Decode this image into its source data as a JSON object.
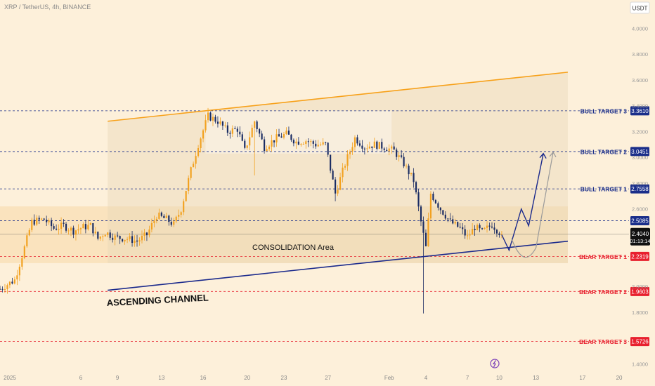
{
  "header": {
    "symbol_line": "XRP / TetherUS, 4h, BINANCE",
    "currency": "USDT"
  },
  "y_axis": {
    "ticks": [
      {
        "v": 4.0,
        "label": "4.0000"
      },
      {
        "v": 3.8,
        "label": "3.8000"
      },
      {
        "v": 3.6,
        "label": "3.6000"
      },
      {
        "v": 3.4,
        "label": "3.4000"
      },
      {
        "v": 3.2,
        "label": "3.2000"
      },
      {
        "v": 3.0,
        "label": "3.0000"
      },
      {
        "v": 2.8,
        "label": "2.8000"
      },
      {
        "v": 2.6,
        "label": "2.6000"
      },
      {
        "v": 2.0,
        "label": "2.0000"
      },
      {
        "v": 1.8,
        "label": "1.8000"
      },
      {
        "v": 1.4,
        "label": "1.4000"
      }
    ]
  },
  "x_axis": {
    "ticks": [
      {
        "i": 0,
        "label": "2025"
      },
      {
        "i": 33,
        "label": "6"
      },
      {
        "i": 48,
        "label": "9"
      },
      {
        "i": 66,
        "label": "13"
      },
      {
        "i": 83,
        "label": "16"
      },
      {
        "i": 101,
        "label": "20"
      },
      {
        "i": 116,
        "label": "23"
      },
      {
        "i": 134,
        "label": "27"
      },
      {
        "i": 159,
        "label": "Feb"
      },
      {
        "i": 174,
        "label": "4"
      },
      {
        "i": 191,
        "label": "7"
      },
      {
        "i": 204,
        "label": "10"
      },
      {
        "i": 219,
        "label": "13"
      },
      {
        "i": 238,
        "label": "17"
      },
      {
        "i": 253,
        "label": "20"
      }
    ]
  },
  "levels": [
    {
      "name": "BULL TARGET 3",
      "value": 3.361,
      "label": "3.3610",
      "kind": "bull"
    },
    {
      "name": "BULL TARGET 2",
      "value": 3.0451,
      "label": "3.0451",
      "kind": "bull"
    },
    {
      "name": "BULL TARGET 1",
      "value": 2.7558,
      "label": "2.7558",
      "kind": "bull"
    },
    {
      "name": "",
      "value": 2.5085,
      "label": "2.5085",
      "kind": "bull"
    },
    {
      "name": "BEAR TARGET 1",
      "value": 2.2319,
      "label": "2.2319",
      "kind": "bear"
    },
    {
      "name": "BEAR TARGET 2",
      "value": 1.9603,
      "label": "1.9603",
      "kind": "bear"
    },
    {
      "name": "BEAR TARGET 3",
      "value": 1.5726,
      "label": "1.5726",
      "kind": "bear"
    }
  ],
  "current_price": {
    "value": 2.404,
    "label": "2.4040",
    "countdown": "01:13:14"
  },
  "annotations": {
    "consolidation": "CONSOLIDATION Area",
    "channel": "ASCENDING CHANNEL"
  },
  "colors": {
    "bull": "#1a2e8a",
    "bear": "#e8202e",
    "up": "#f2a11f",
    "down": "#1a2c63",
    "channel_top": "#f7a11a",
    "channel_bottom": "#1b2a8c",
    "bg": "#fdf0da"
  },
  "chart_data": {
    "type": "candlestick",
    "symbol": "XRP / TetherUS, 4h, BINANCE",
    "ylim": [
      1.38,
      4.1
    ],
    "x_range": [
      0,
      257
    ],
    "channel": {
      "upper": {
        "from": [
          44,
          3.28
        ],
        "to": [
          232,
          3.66
        ]
      },
      "lower": {
        "from": [
          44,
          1.97
        ],
        "to": [
          232,
          2.35
        ]
      }
    },
    "consolidation_zone": {
      "x": [
        44,
        232
      ],
      "y": [
        2.18,
        3.44
      ]
    },
    "close_path": [
      [
        0,
        1.98
      ],
      [
        6,
        2.05
      ],
      [
        10,
        2.3
      ],
      [
        13,
        2.5
      ],
      [
        18,
        2.52
      ],
      [
        22,
        2.45
      ],
      [
        26,
        2.47
      ],
      [
        30,
        2.43
      ],
      [
        34,
        2.46
      ],
      [
        37,
        2.47
      ],
      [
        40,
        2.37
      ],
      [
        43,
        2.42
      ],
      [
        47,
        2.38
      ],
      [
        52,
        2.37
      ],
      [
        56,
        2.35
      ],
      [
        60,
        2.4
      ],
      [
        64,
        2.55
      ],
      [
        68,
        2.52
      ],
      [
        71,
        2.48
      ],
      [
        74,
        2.6
      ],
      [
        78,
        2.9
      ],
      [
        81,
        3.1
      ],
      [
        85,
        3.32
      ],
      [
        89,
        3.28
      ],
      [
        93,
        3.2
      ],
      [
        97,
        3.22
      ],
      [
        100,
        3.05
      ],
      [
        104,
        3.28
      ],
      [
        108,
        3.08
      ],
      [
        113,
        3.15
      ],
      [
        117,
        3.18
      ],
      [
        121,
        3.12
      ],
      [
        125,
        3.13
      ],
      [
        129,
        3.1
      ],
      [
        133,
        3.1
      ],
      [
        137,
        2.72
      ],
      [
        141,
        2.95
      ],
      [
        145,
        3.15
      ],
      [
        149,
        3.08
      ],
      [
        153,
        3.1
      ],
      [
        157,
        3.08
      ],
      [
        161,
        3.05
      ],
      [
        165,
        2.95
      ],
      [
        169,
        2.82
      ],
      [
        172,
        2.5
      ],
      [
        174,
        2.3
      ],
      [
        176,
        2.72
      ],
      [
        180,
        2.6
      ],
      [
        184,
        2.5
      ],
      [
        188,
        2.45
      ],
      [
        191,
        2.38
      ],
      [
        194,
        2.46
      ],
      [
        197,
        2.42
      ],
      [
        201,
        2.48
      ],
      [
        205,
        2.4
      ]
    ],
    "projection_blue": [
      [
        205,
        2.4
      ],
      [
        208,
        2.28
      ],
      [
        213,
        2.6
      ],
      [
        216,
        2.47
      ],
      [
        222,
        3.03
      ]
    ],
    "projection_gray": [
      [
        209,
        2.37
      ],
      [
        214,
        2.22
      ],
      [
        219,
        2.3
      ],
      [
        226,
        3.04
      ]
    ]
  }
}
